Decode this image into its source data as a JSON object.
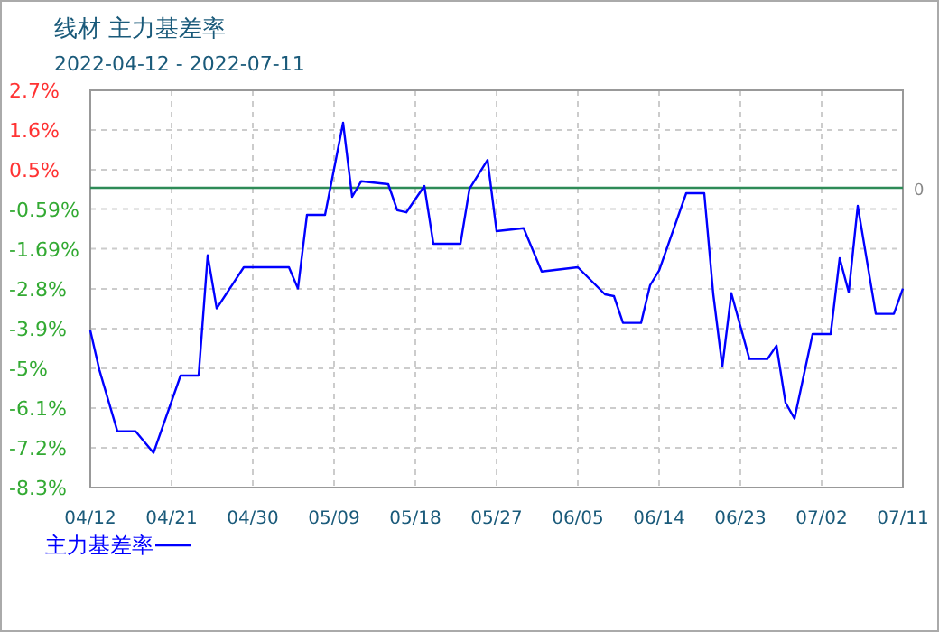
{
  "chart_data": {
    "type": "line",
    "title": "线材  主力基差率",
    "subtitle": "2022-04-12 - 2022-07-11",
    "x": [
      "2022-04-12",
      "2022-04-13",
      "2022-04-15",
      "2022-04-17",
      "2022-04-19",
      "2022-04-22",
      "2022-04-24",
      "2022-04-25",
      "2022-04-26",
      "2022-04-29",
      "2022-05-04",
      "2022-05-05",
      "2022-05-06",
      "2022-05-08",
      "2022-05-10",
      "2022-05-11",
      "2022-05-12",
      "2022-05-15",
      "2022-05-16",
      "2022-05-17",
      "2022-05-19",
      "2022-05-20",
      "2022-05-23",
      "2022-05-24",
      "2022-05-26",
      "2022-05-27",
      "2022-05-30",
      "2022-06-01",
      "2022-06-05",
      "2022-06-08",
      "2022-06-09",
      "2022-06-10",
      "2022-06-12",
      "2022-06-13",
      "2022-06-14",
      "2022-06-17",
      "2022-06-19",
      "2022-06-20",
      "2022-06-21",
      "2022-06-22",
      "2022-06-24",
      "2022-06-26",
      "2022-06-27",
      "2022-06-28",
      "2022-06-29",
      "2022-07-01",
      "2022-07-03",
      "2022-07-04",
      "2022-07-05",
      "2022-07-06",
      "2022-07-08",
      "2022-07-10",
      "2022-07-11"
    ],
    "series": [
      {
        "name": "主力基差率",
        "color": "#0000ff",
        "values": [
          -3.95,
          -5.04,
          -6.74,
          -6.74,
          -7.34,
          -5.2,
          -5.2,
          -1.87,
          -3.34,
          -2.2,
          -2.2,
          -2.79,
          -0.75,
          -0.75,
          1.8,
          -0.25,
          0.18,
          0.1,
          -0.62,
          -0.68,
          0.05,
          -1.55,
          -1.55,
          -0.03,
          0.77,
          -1.2,
          -1.12,
          -2.32,
          -2.2,
          -2.95,
          -3.0,
          -3.74,
          -3.74,
          -2.7,
          -2.29,
          -0.15,
          -0.15,
          -2.95,
          -4.95,
          -2.92,
          -4.74,
          -4.74,
          -4.37,
          -5.95,
          -6.39,
          -4.05,
          -4.05,
          -1.95,
          -2.89,
          -0.5,
          -3.49,
          -3.49,
          -2.79
        ]
      }
    ],
    "xlim": [
      "2022-04-12",
      "2022-07-11"
    ],
    "xticks": [
      {
        "value": "2022-04-12",
        "label": "04/12"
      },
      {
        "value": "2022-04-21",
        "label": "04/21"
      },
      {
        "value": "2022-04-30",
        "label": "04/30"
      },
      {
        "value": "2022-05-09",
        "label": "05/09"
      },
      {
        "value": "2022-05-18",
        "label": "05/18"
      },
      {
        "value": "2022-05-27",
        "label": "05/27"
      },
      {
        "value": "2022-06-05",
        "label": "06/05"
      },
      {
        "value": "2022-06-14",
        "label": "06/14"
      },
      {
        "value": "2022-06-23",
        "label": "06/23"
      },
      {
        "value": "2022-07-02",
        "label": "07/02"
      },
      {
        "value": "2022-07-11",
        "label": "07/11"
      }
    ],
    "ylim": [
      -8.3,
      2.7
    ],
    "yticks": [
      {
        "value": 2.7,
        "label": "2.7%"
      },
      {
        "value": 1.6,
        "label": "1.6%"
      },
      {
        "value": 0.5,
        "label": "0.5%"
      },
      {
        "value": -0.59,
        "label": "-0.59%"
      },
      {
        "value": -1.69,
        "label": "-1.69%"
      },
      {
        "value": -2.8,
        "label": "-2.8%"
      },
      {
        "value": -3.9,
        "label": "-3.9%"
      },
      {
        "value": -5,
        "label": "-5%"
      },
      {
        "value": -6.1,
        "label": "-6.1%"
      },
      {
        "value": -7.2,
        "label": "-7.2%"
      },
      {
        "value": -8.3,
        "label": "-8.3%"
      }
    ],
    "ref_lines": [
      {
        "axis": "y",
        "value": 0,
        "label": "0",
        "color": "#2e8b57"
      }
    ],
    "grid": true,
    "legend": "bottom left",
    "marker": "none",
    "line_style": "solid"
  }
}
